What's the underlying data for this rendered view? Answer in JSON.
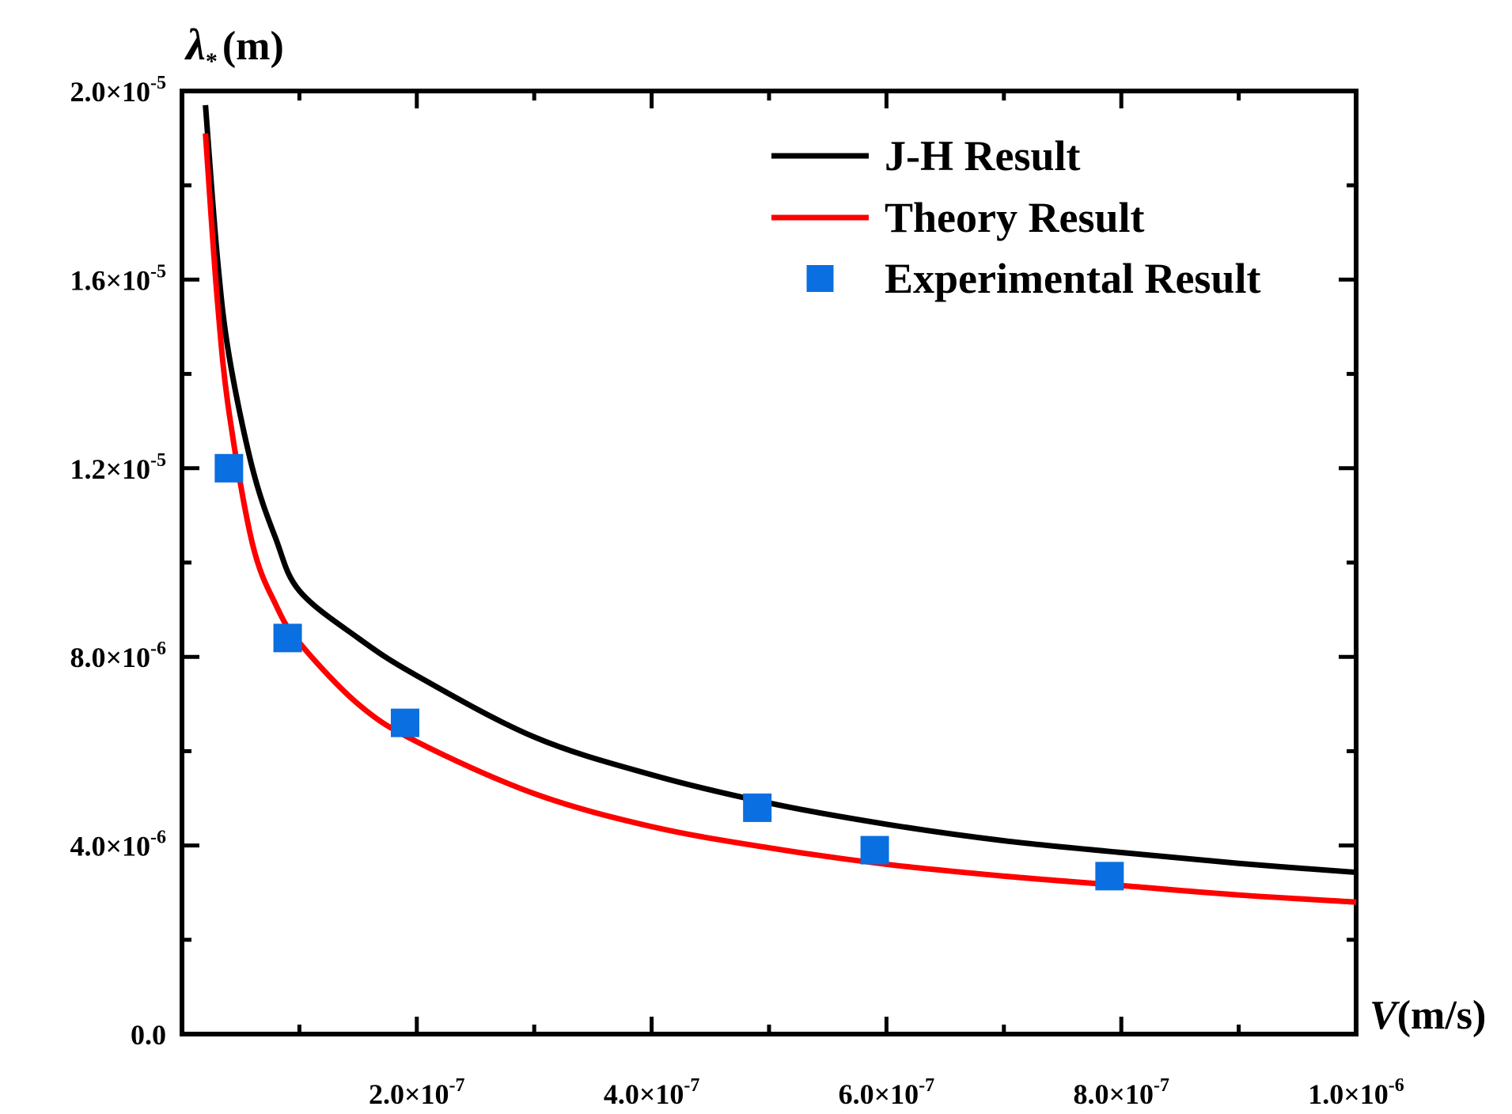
{
  "chart_data": {
    "type": "line",
    "title": "",
    "xlabel": {
      "var": "V",
      "unit": "(m/s)"
    },
    "ylabel": {
      "var": "λ",
      "sub": "*",
      "unit": "(m)"
    },
    "xlim": [
      0,
      1e-06
    ],
    "ylim": [
      0,
      2e-05
    ],
    "x_ticks": [
      {
        "value": 2e-07,
        "mantissa": "2.0×10",
        "exp": "-7"
      },
      {
        "value": 4e-07,
        "mantissa": "4.0×10",
        "exp": "-7"
      },
      {
        "value": 6e-07,
        "mantissa": "6.0×10",
        "exp": "-7"
      },
      {
        "value": 8e-07,
        "mantissa": "8.0×10",
        "exp": "-7"
      },
      {
        "value": 1e-06,
        "mantissa": "1.0×10",
        "exp": "-6"
      }
    ],
    "y_ticks": [
      {
        "value": 0,
        "mantissa": "0.0",
        "exp": ""
      },
      {
        "value": 4e-06,
        "mantissa": "4.0×10",
        "exp": "-6"
      },
      {
        "value": 8e-06,
        "mantissa": "8.0×10",
        "exp": "-6"
      },
      {
        "value": 1.2e-05,
        "mantissa": "1.2×10",
        "exp": "-5"
      },
      {
        "value": 1.6e-05,
        "mantissa": "1.6×10",
        "exp": "-5"
      },
      {
        "value": 2e-05,
        "mantissa": "2.0×10",
        "exp": "-5"
      }
    ],
    "legend_position": "top-right",
    "series": [
      {
        "name": "J-H Result",
        "kind": "line",
        "color": "#000000",
        "x": [
          2e-08,
          3e-08,
          4e-08,
          6e-08,
          8e-08,
          1e-07,
          1.5e-07,
          2e-07,
          3e-07,
          4e-07,
          5e-07,
          6e-07,
          7e-07,
          8e-07,
          9e-07,
          1e-06
        ],
        "y": [
          1.97e-05,
          1.65e-05,
          1.44e-05,
          1.2e-05,
          1.05e-05,
          9.4e-06,
          8.4e-06,
          7.6e-06,
          6.3e-06,
          5.5e-06,
          4.9e-06,
          4.45e-06,
          4.1e-06,
          3.85e-06,
          3.62e-06,
          3.43e-06
        ]
      },
      {
        "name": "Theory Result",
        "kind": "line",
        "color": "#ff0000",
        "x": [
          2e-08,
          3e-08,
          4e-08,
          6e-08,
          8e-08,
          1e-07,
          1.5e-07,
          2e-07,
          3e-07,
          4e-07,
          5e-07,
          6e-07,
          7e-07,
          8e-07,
          9e-07,
          1e-06
        ],
        "y": [
          1.91e-05,
          1.56e-05,
          1.32e-05,
          1.04e-05,
          9.1e-06,
          8.3e-06,
          7e-06,
          6.2e-06,
          5.1e-06,
          4.4e-06,
          3.95e-06,
          3.6e-06,
          3.35e-06,
          3.15e-06,
          2.95e-06,
          2.8e-06
        ]
      },
      {
        "name": "Experimental Result",
        "kind": "scatter",
        "color": "#0a6fe0",
        "x": [
          4e-08,
          9e-08,
          1.9e-07,
          4.9e-07,
          5.9e-07,
          7.9e-07
        ],
        "y": [
          1.2e-05,
          8.4e-06,
          6.6e-06,
          4.8e-06,
          3.9e-06,
          3.35e-06
        ]
      }
    ]
  }
}
